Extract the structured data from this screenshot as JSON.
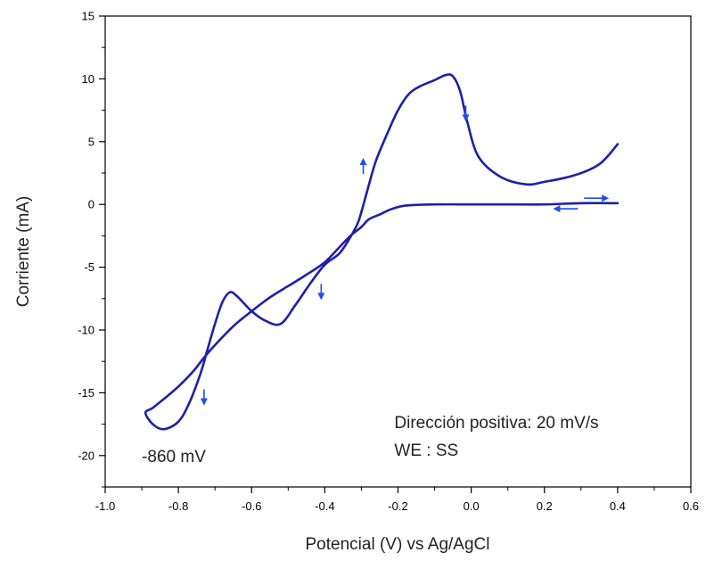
{
  "chart_data": {
    "type": "line",
    "xlabel": "Potencial (V) vs Ag/AgCl",
    "ylabel": "Corriente (mA)",
    "xlim": [
      -1.0,
      0.6
    ],
    "ylim": [
      -22.5,
      15
    ],
    "x_ticks": [
      -1.0,
      -0.8,
      -0.6,
      -0.4,
      -0.2,
      0.0,
      0.2,
      0.4,
      0.6
    ],
    "x_tick_labels": [
      "-1.0",
      "-0.8",
      "-0.6",
      "-0.4",
      "-0.2",
      "0.0",
      "0.2",
      "0.4",
      "0.6"
    ],
    "y_ticks": [
      15,
      10,
      5,
      0,
      -5,
      -10,
      -15,
      -20
    ],
    "y_tick_labels": [
      "15",
      "10",
      "5",
      "0",
      "-5",
      "-10",
      "-15",
      "-20"
    ],
    "grid": false,
    "series_color": "#1f1fa8",
    "arrow_color": "#1a4ff0",
    "series": [
      {
        "x": [
          0.4,
          0.3,
          0.2,
          0.1,
          0.0,
          -0.1,
          -0.18,
          -0.22,
          -0.25,
          -0.28,
          -0.3,
          -0.33,
          -0.36,
          -0.4,
          -0.45,
          -0.5,
          -0.55,
          -0.6,
          -0.65,
          -0.7,
          -0.73,
          -0.76,
          -0.8,
          -0.84,
          -0.87,
          -0.89,
          -0.87,
          -0.84,
          -0.8,
          -0.77,
          -0.74,
          -0.72,
          -0.7,
          -0.68,
          -0.66,
          -0.64,
          -0.6,
          -0.56,
          -0.52,
          -0.48,
          -0.44,
          -0.4,
          -0.36,
          -0.33,
          -0.31,
          -0.3,
          -0.28,
          -0.26,
          -0.23,
          -0.2,
          -0.17,
          -0.14,
          -0.1,
          -0.07,
          -0.05,
          -0.03,
          -0.01,
          0.02,
          0.08,
          0.15,
          0.2,
          0.28,
          0.35,
          0.4
        ],
        "y": [
          0.1,
          0.1,
          0.0,
          0.0,
          0.0,
          0.0,
          -0.1,
          -0.4,
          -0.8,
          -1.2,
          -1.8,
          -2.5,
          -3.4,
          -4.6,
          -5.6,
          -6.5,
          -7.4,
          -8.5,
          -9.7,
          -11.2,
          -12.2,
          -13.3,
          -14.5,
          -15.5,
          -16.2,
          -16.6,
          -17.5,
          -17.9,
          -17.3,
          -15.8,
          -13.5,
          -11.5,
          -9.5,
          -7.8,
          -7.0,
          -7.3,
          -8.5,
          -9.3,
          -9.5,
          -8.0,
          -6.3,
          -4.8,
          -3.9,
          -2.6,
          -1.5,
          -0.6,
          1.5,
          3.5,
          5.6,
          7.5,
          8.8,
          9.4,
          9.9,
          10.3,
          10.2,
          9.0,
          6.5,
          3.8,
          2.2,
          1.6,
          1.8,
          2.3,
          3.2,
          4.8
        ]
      }
    ],
    "annotations": [
      {
        "text": "Dirección positiva: 20 mV/s",
        "x": -0.21,
        "y": -17.8
      },
      {
        "text": "WE : SS",
        "x": -0.21,
        "y": -20.0
      },
      {
        "text": "-860 mV",
        "x": -0.9,
        "y": -20.5
      }
    ],
    "direction_arrows": [
      {
        "x": 0.34,
        "y": 0.5,
        "dir": "right"
      },
      {
        "x": 0.26,
        "y": -0.35,
        "dir": "left"
      },
      {
        "x": -0.015,
        "y": 7.3,
        "dir": "down"
      },
      {
        "x": -0.295,
        "y": 3.0,
        "dir": "up"
      },
      {
        "x": -0.41,
        "y": -6.9,
        "dir": "down"
      },
      {
        "x": -0.73,
        "y": -15.3,
        "dir": "down"
      }
    ]
  }
}
